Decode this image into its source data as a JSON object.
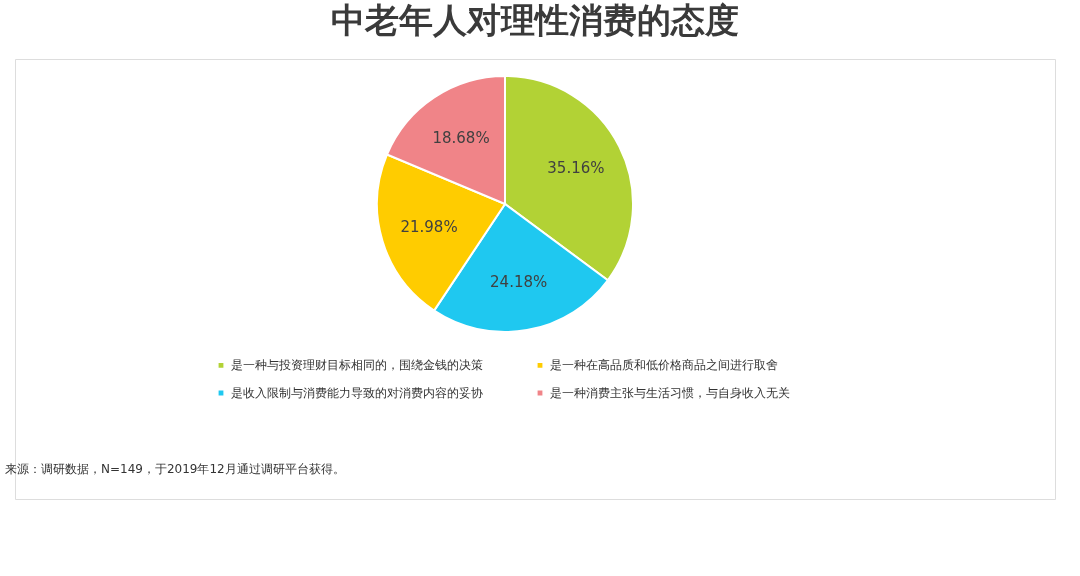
{
  "chart_data": {
    "type": "pie",
    "title": "中老年人对理性消费的态度",
    "categories": [
      "是一种与投资理财目标相同的，围绕金钱的决策",
      "是收入限制与消费能力导致的对消费内容的妥协",
      "是一种在高品质和低价格商品之间进行取舍",
      "是一种消费主张与生活习惯，与自身收入无关"
    ],
    "values": [
      35.16,
      24.18,
      21.98,
      18.68
    ],
    "colors": [
      "#b2d235",
      "#1fc8f0",
      "#ffcc00",
      "#f08488"
    ],
    "value_labels": [
      "35.16%",
      "24.18%",
      "21.98%",
      "18.68%"
    ],
    "legend": "bottom",
    "annotations": [
      "来源：调研数据，N=149，于2019年12月通过调研平台获得。"
    ]
  }
}
